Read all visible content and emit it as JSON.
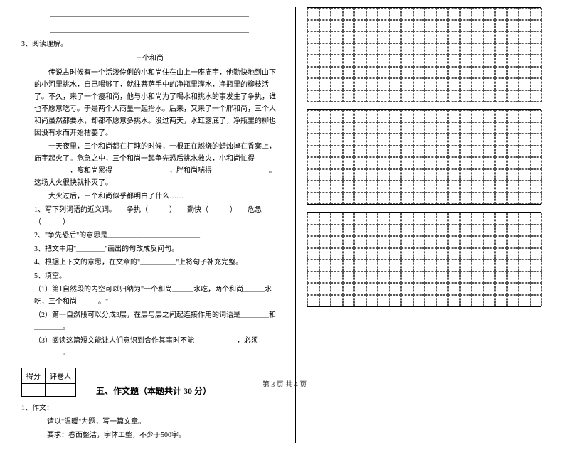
{
  "blank_lines_count": 2,
  "q3": {
    "number": "3、阅读理解。",
    "title": "三个和尚",
    "paragraph1": "　　传说古时候有一个活泼伶俐的小和尚住在山上一座庙宇，他勤快地到山下的小河里挑水，自己喝够了，就往菩萨手中的净瓶里灌水，净瓶里的柳枝活了。不久，来了一个瘦和尚，他与小和尚为了喝水和挑水的事发生了争执，谁也不愿意吃亏。于是两个人商量一起抬水。后来，又来了一个胖和尚，三个人和尚虽然都要水，却都不愿意多挑水。没过两天，水缸露底了，净瓶里的柳也因没有水而开始枯萎了。",
    "paragraph2": "　　一天夜里，三个和尚都在打盹的时候，一根正在燃烧的蜡烛掉在香案上，庙宇起火了。危急之中，三个和尚一起争先恐后挑水救火，小和尚忙得＿＿＿＿＿＿＿＿，瘦和尚累得＿＿＿＿＿＿＿＿，胖和尚喘得＿＿＿＿＿＿＿＿。这场大火很快就扑灭了。",
    "paragraph3": "　　大火过后，三个和尚似乎都明白了什么……",
    "sub1": "1、写下列词语的近义词。　　争执（　　　）　　勤快（　　　）　　危急（　　　）",
    "sub2": "2、\"争先恐后\"的意思是＿＿＿＿＿＿＿＿＿＿＿＿＿",
    "sub3": "3、把文中用\"＿＿＿＿\"画出的句改成反问句。",
    "sub4": "4、根据上下文的意思，在文章的\"＿＿＿＿＿\"上将句子补充完整。",
    "sub5": "5、填空。",
    "sub5_1": "（1）第1自然段的内空可以归纳为\"一个和尚＿＿＿水吃，两个和尚＿＿＿水吃，三个和尚＿＿＿。\"",
    "sub5_2": "（2）第一自然段可以分成3层，在层与层之间起连接作用的词语是＿＿＿＿和＿＿＿＿。",
    "sub5_3": "（3）阅读这篇短文能让人们意识到合作其事时不能＿＿＿＿＿＿，必须＿＿＿＿＿＿。"
  },
  "score_table": {
    "headers": [
      "得分",
      "评卷人"
    ]
  },
  "section5_title": "五、作文题（本题共计 30 分）",
  "q1_composition": {
    "number": "1、作文：",
    "line1": "请以\"温暖\"为题，写一篇文章。",
    "line2": "要求：卷面整洁，字体工整，不少于500字。"
  },
  "grid": {
    "blocks": 3,
    "rows_per_block": 8,
    "cols": 20
  },
  "footer": "第 3 页 共 4 页",
  "colors": {
    "background": "#ffffff",
    "text": "#000000",
    "grid_border": "#000000",
    "grid_dash": "#555555"
  }
}
